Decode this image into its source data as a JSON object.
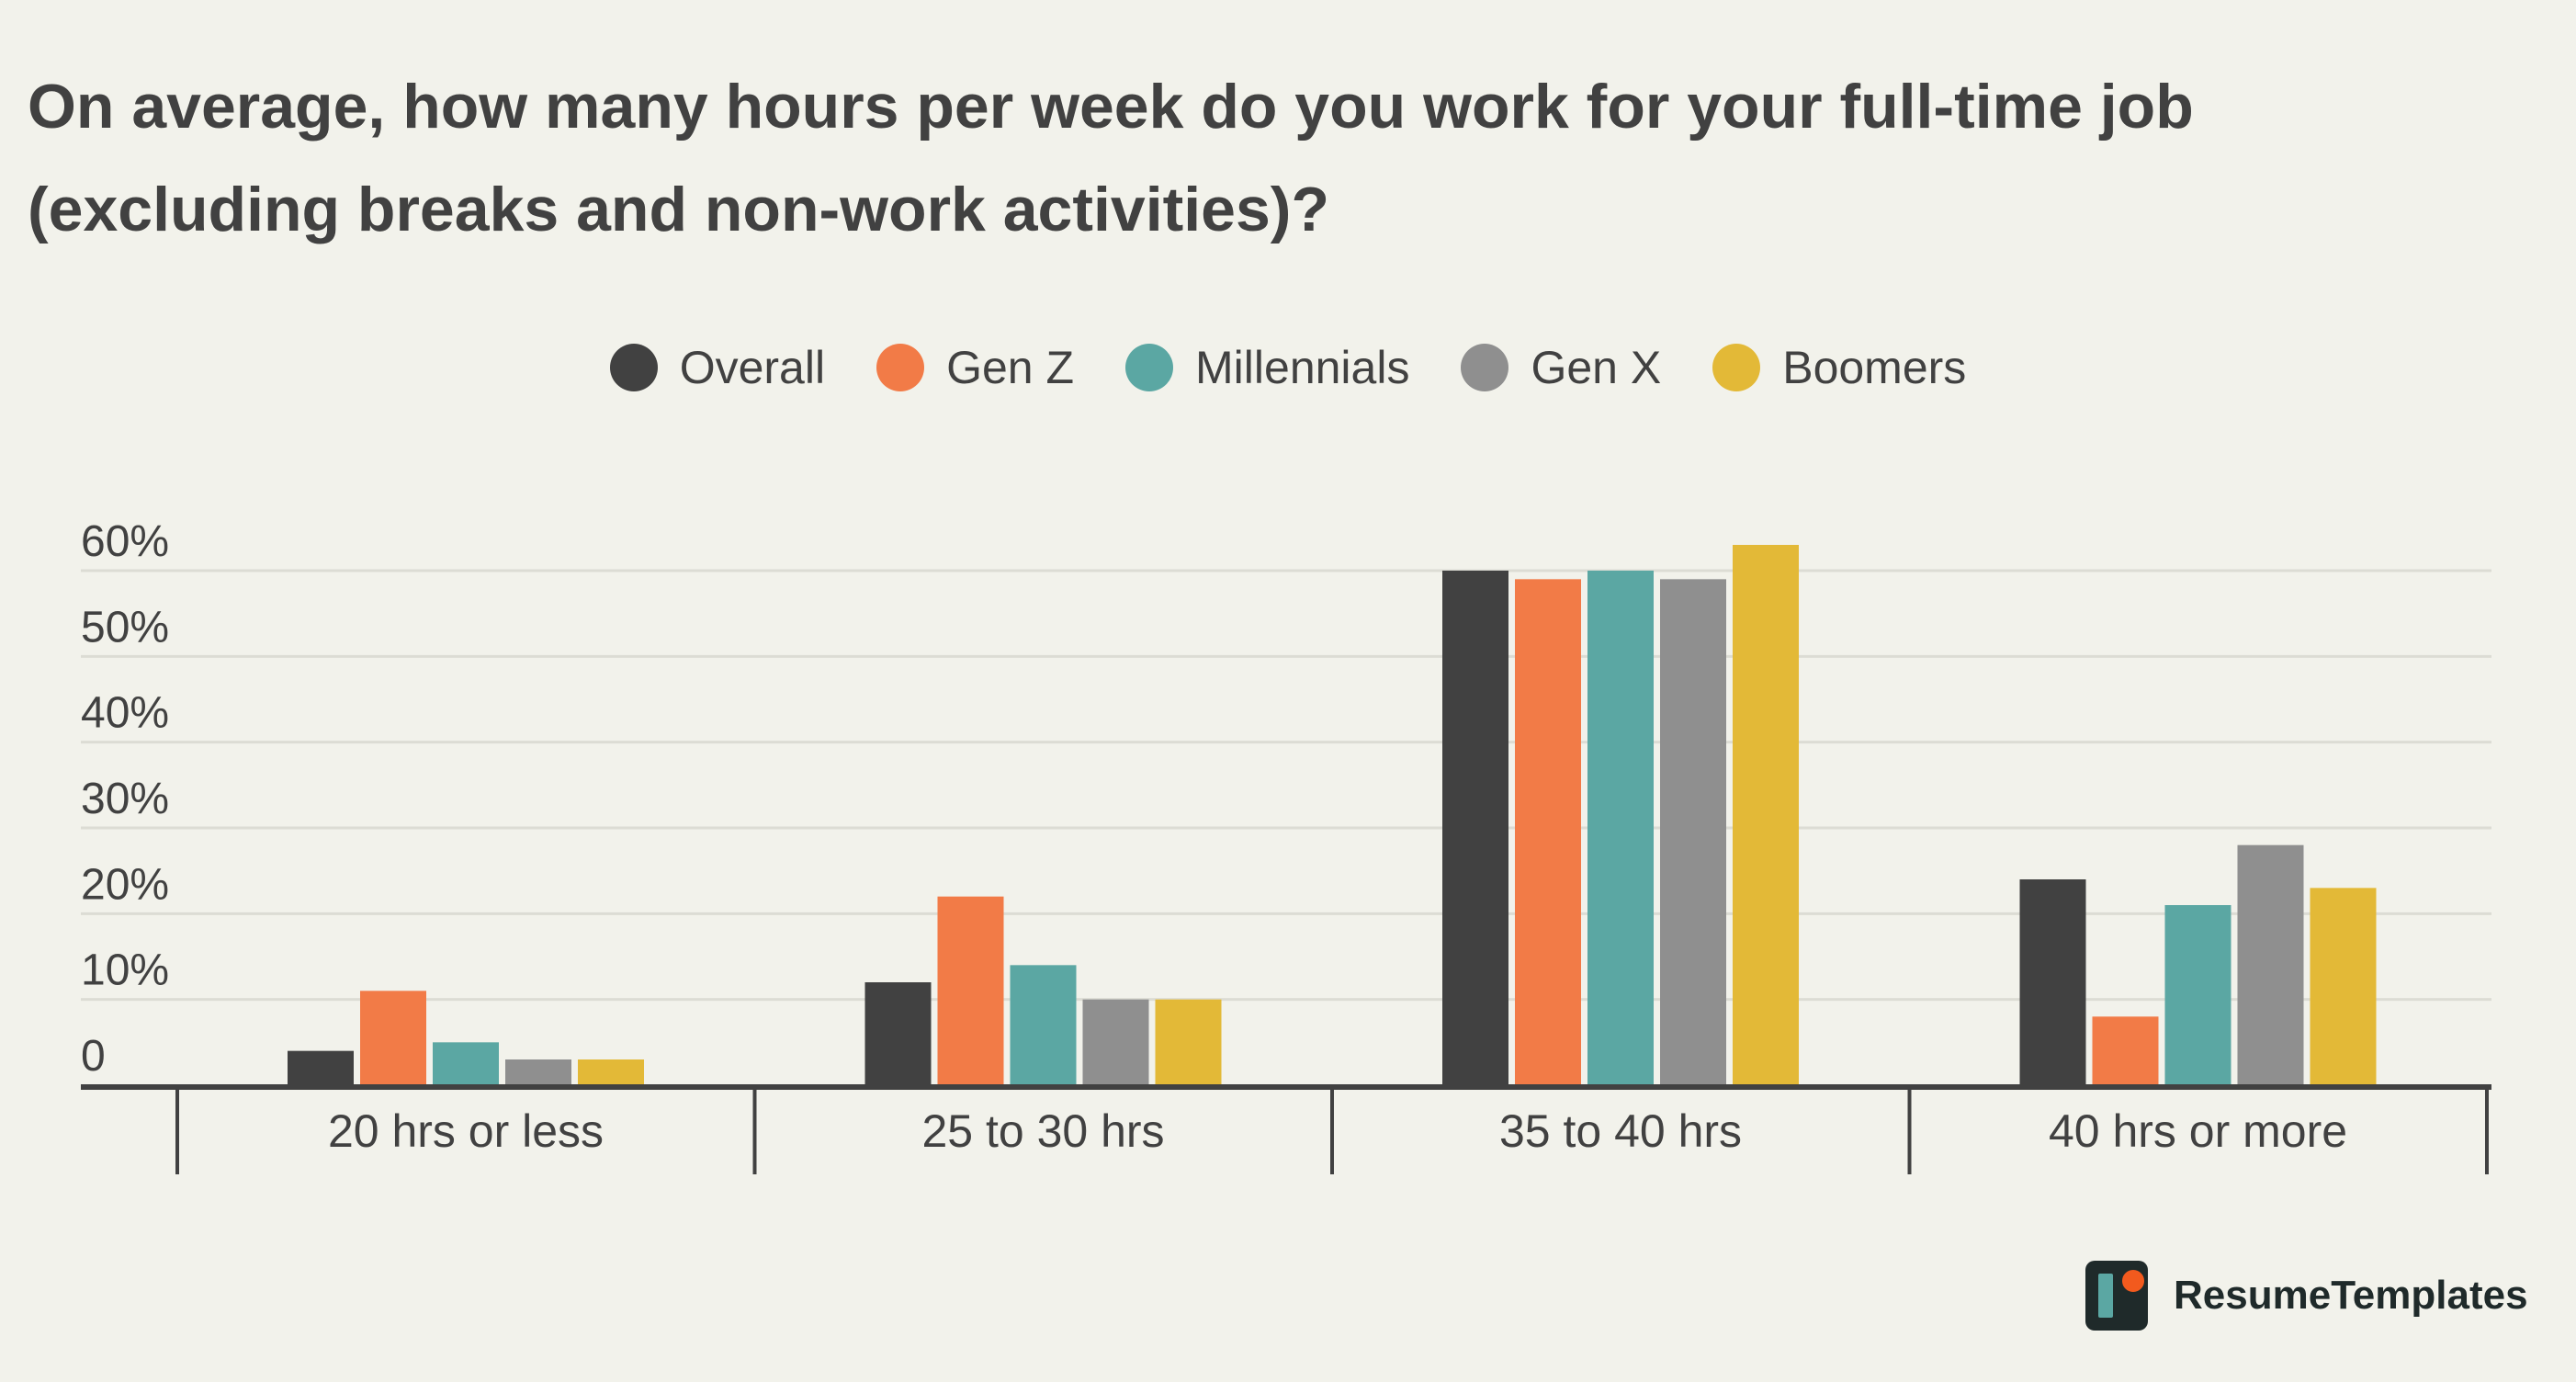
{
  "chart_data": {
    "type": "bar",
    "title": "On average, how many hours per week do you work for your full-time job (excluding breaks and non-work activities)?",
    "categories": [
      "20 hrs or less",
      "25 to 30 hrs",
      "35 to 40 hrs",
      "40 hrs or more"
    ],
    "series": [
      {
        "name": "Overall",
        "color": "#414141",
        "values": [
          4,
          12,
          60,
          24
        ]
      },
      {
        "name": "Gen Z",
        "color": "#f27b47",
        "values": [
          11,
          22,
          59,
          8
        ]
      },
      {
        "name": "Millennials",
        "color": "#5ba7a3",
        "values": [
          5,
          14,
          60,
          21
        ]
      },
      {
        "name": "Gen X",
        "color": "#8f8f8f",
        "values": [
          3,
          10,
          59,
          28
        ]
      },
      {
        "name": "Boomers",
        "color": "#e3b937",
        "values": [
          3,
          10,
          63,
          23
        ]
      }
    ],
    "ylim": [
      0,
      60
    ],
    "yticks": [
      0,
      10,
      20,
      30,
      40,
      50,
      60
    ],
    "ytick_labels": [
      "0",
      "10%",
      "20%",
      "30%",
      "40%",
      "50%",
      "60%"
    ],
    "xlabel": "",
    "ylabel": "",
    "grid": true,
    "legend": "top-center"
  },
  "brand": {
    "name": "ResumeTemplates"
  }
}
